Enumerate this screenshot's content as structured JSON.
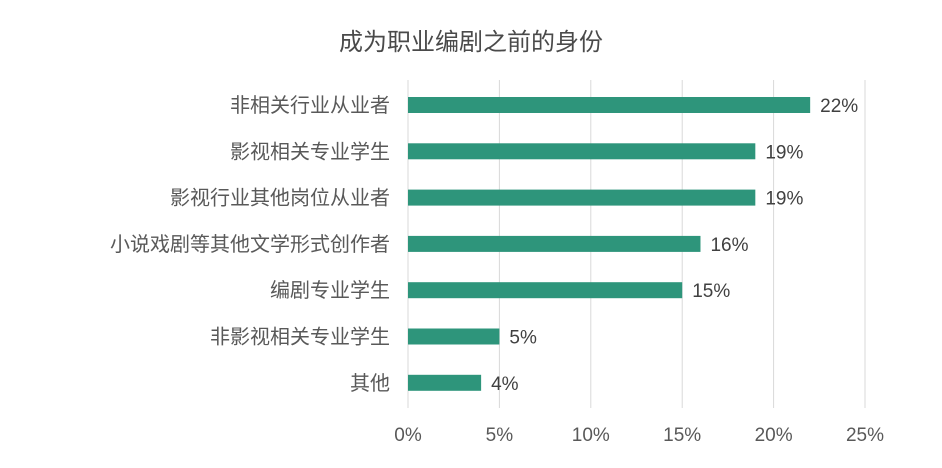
{
  "chart_data": {
    "type": "bar",
    "orientation": "horizontal",
    "title": "成为职业编剧之前的身份",
    "categories": [
      "非相关行业从业者",
      "影视相关专业学生",
      "影视行业其他岗位从业者",
      "小说戏剧等其他文学形式创作者",
      "编剧专业学生",
      "非影视相关专业学生",
      "其他"
    ],
    "values": [
      22,
      19,
      19,
      16,
      15,
      5,
      4
    ],
    "data_labels": [
      "22%",
      "19%",
      "19%",
      "16%",
      "15%",
      "5%",
      "4%"
    ],
    "xlim": [
      0,
      25
    ],
    "x_ticks": [
      0,
      5,
      10,
      15,
      20,
      25
    ],
    "x_tick_labels": [
      "0%",
      "5%",
      "10%",
      "15%",
      "20%",
      "25%"
    ],
    "xlabel": "",
    "ylabel": "",
    "grid": "vertical",
    "legend": "none",
    "colors": {
      "bar": "#2e957b",
      "grid": "#d9d9d9",
      "text": "#595959",
      "title": "#4a4a4a"
    }
  }
}
